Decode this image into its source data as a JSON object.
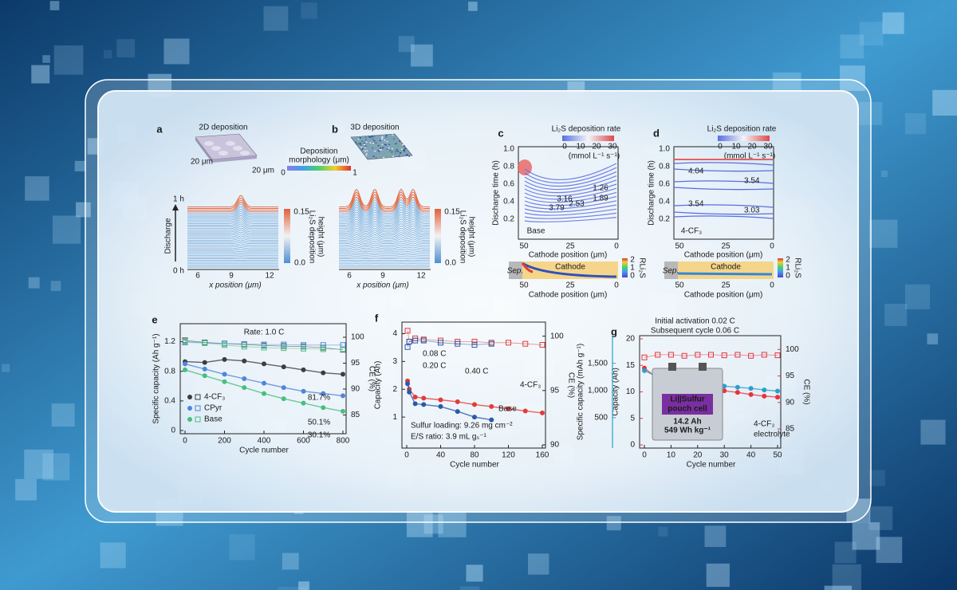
{
  "panels": {
    "a": {
      "label": "a",
      "title": "2D deposition",
      "dims": [
        "20 μm",
        "20 μm"
      ],
      "morph_title": [
        "Deposition",
        "morphology (μm)"
      ],
      "morph_ticks": [
        0,
        1
      ],
      "time_top": "1 h",
      "time_bottom": "0 h",
      "time_label": "Discharge",
      "xticks": [
        6,
        9,
        12
      ],
      "xlabel": "x position (μm)",
      "height_ticks": [
        "0.15",
        "0.0"
      ],
      "height_label": [
        "Li₂S deposition",
        "height (μm)"
      ]
    },
    "b": {
      "label": "b",
      "title": "3D deposition",
      "xticks": [
        6,
        9,
        12
      ],
      "xlabel": "x position (μm)",
      "height_ticks": [
        "0.15",
        "0.0"
      ],
      "height_label": [
        "Li₂S deposition",
        "height (μm)"
      ]
    },
    "c": {
      "label": "c",
      "rate_title": "Li₂S deposition rate",
      "rate_ticks": [
        0,
        10,
        20,
        30
      ],
      "rate_unit": "(mmol L⁻¹ s⁻¹)",
      "yticks": [
        "0.2",
        "0.4",
        "0.6",
        "0.8",
        "1.0"
      ],
      "ylabel": "Discharge time (h)",
      "xticks": [
        50,
        25,
        0
      ],
      "xlabel": "Cathode position (μm)",
      "contour_labels": [
        "1.26",
        "1.89",
        "2.53",
        "3.16",
        "3.79"
      ],
      "tag": "Base",
      "sep": "Sep.",
      "cathode": "Cathode",
      "r_ticks": [
        2,
        1,
        0
      ],
      "r_label": "RLi₂S",
      "strip_xticks": [
        50,
        25,
        0
      ],
      "strip_xlabel": "Cathode position (μm)"
    },
    "d": {
      "label": "d",
      "rate_title": "Li₂S deposition rate",
      "rate_ticks": [
        0,
        10,
        20,
        30
      ],
      "rate_unit": "(mmol L⁻¹ s⁻¹)",
      "yticks": [
        "0.2",
        "0.4",
        "0.6",
        "0.8",
        "1.0"
      ],
      "ylabel": "Discharge time (h)",
      "xticks": [
        50,
        25,
        0
      ],
      "xlabel": "Cathode position (μm)",
      "contour_labels": [
        "4.04",
        "3.54",
        "3.54",
        "3.03"
      ],
      "tag": "4-CF₃",
      "sep": "Sep.",
      "cathode": "Cathode",
      "r_ticks": [
        2,
        1,
        0
      ],
      "r_label": "RLi₂S",
      "strip_xticks": [
        50,
        25,
        0
      ],
      "strip_xlabel": "Cathode position (μm)"
    }
  },
  "chart_data": [
    {
      "type": "line",
      "label": "e",
      "note": "Rate: 1.0 C",
      "x": [
        0,
        100,
        200,
        300,
        400,
        500,
        600,
        700,
        800
      ],
      "series": [
        {
          "name": "4-CF₃",
          "color": "#3d3d3d",
          "values": [
            0.93,
            0.92,
            0.96,
            0.94,
            0.9,
            0.86,
            0.82,
            0.78,
            0.76
          ]
        },
        {
          "name": "CPyr",
          "color": "#4f86d9",
          "values": [
            0.9,
            0.83,
            0.76,
            0.7,
            0.64,
            0.58,
            0.53,
            0.5,
            0.47
          ]
        },
        {
          "name": "Base",
          "color": "#48bf80",
          "values": [
            0.82,
            0.74,
            0.66,
            0.58,
            0.5,
            0.43,
            0.37,
            0.31,
            0.26
          ]
        }
      ],
      "ce_series": [
        {
          "color": "#3d3d3d",
          "axis": "y2",
          "values": [
            99.4,
            99.0,
            98.8,
            98.6,
            98.4,
            98.3,
            98.2,
            98.0,
            97.6
          ]
        },
        {
          "color": "#4f86d9",
          "axis": "y2",
          "values": [
            99.0,
            98.9,
            98.8,
            98.7,
            98.6,
            98.6,
            98.5,
            98.5,
            98.5
          ]
        },
        {
          "color": "#48bf80",
          "axis": "y2",
          "values": [
            99.2,
            98.9,
            98.5,
            98.2,
            98.0,
            97.9,
            97.8,
            97.7,
            97.7
          ]
        }
      ],
      "annotations": [
        "81.7%",
        "50.1%",
        "30.1%"
      ],
      "xlim": [
        0,
        800
      ],
      "xticks": [
        0,
        200,
        400,
        600,
        800
      ],
      "ylim": [
        0,
        1.4
      ],
      "yticks": [
        0,
        0.4,
        0.8,
        1.2
      ],
      "y2lim": [
        82,
        102
      ],
      "y2ticks": [
        85,
        90,
        95,
        100
      ],
      "xlabel": "Cycle number",
      "ylabel": "Specific capacity (Ah g⁻¹)",
      "y2label": "CE (%)",
      "legend": "lower-left"
    },
    {
      "type": "line",
      "label": "f",
      "x": [
        1,
        3,
        10,
        20,
        40,
        60,
        80,
        100,
        120,
        140,
        160
      ],
      "series": [
        {
          "name": "4-CF₃",
          "color": "#e23b3b",
          "values": [
            2.3,
            2.0,
            1.72,
            1.68,
            1.62,
            1.55,
            1.45,
            1.38,
            1.3,
            1.22,
            1.15
          ]
        },
        {
          "name": "Base",
          "color": "#2a5aa8",
          "values": [
            2.2,
            1.9,
            1.48,
            1.45,
            1.38,
            1.2,
            1.0,
            0.9,
            null,
            null,
            null
          ]
        }
      ],
      "ce_series": [
        {
          "color": "#e23b3b",
          "axis": "y2",
          "values": [
            100.5,
            99.5,
            99.8,
            99.7,
            99.6,
            99.5,
            99.5,
            99.4,
            99.4,
            99.3,
            99.2
          ]
        },
        {
          "color": "#2a5aa8",
          "axis": "y2",
          "values": [
            99.0,
            99.5,
            99.6,
            99.6,
            99.4,
            99.3,
            99.2,
            99.3,
            null,
            null,
            null
          ]
        }
      ],
      "annotations": [
        "0.08 C",
        "0.20 C",
        "0.40 C",
        "Sulfur loading: 9.26 mg cm⁻²",
        "E/S ratio: 3.9 mL gₛ⁻¹"
      ],
      "xlim": [
        0,
        160
      ],
      "xticks": [
        0,
        40,
        80,
        120,
        160
      ],
      "ylim": [
        0,
        4.3
      ],
      "yticks": [
        1,
        2,
        3,
        4
      ],
      "y2lim": [
        90,
        101
      ],
      "y2ticks": [
        90,
        95,
        100
      ],
      "xlabel": "Cycle number",
      "ylabel": "Capacity (Ah)",
      "y2label": "CE (%)",
      "legend": "inline"
    },
    {
      "type": "line",
      "label": "g",
      "title": "Initial activation 0.02 C",
      "subtitle": "Subsequent cycle 0.06 C",
      "x": [
        0,
        5,
        10,
        15,
        20,
        25,
        30,
        35,
        40,
        45,
        50
      ],
      "series": [
        {
          "color": "#e8333a",
          "values": [
            14.5,
            12.5,
            11.6,
            11.2,
            10.8,
            10.5,
            10.2,
            9.9,
            9.5,
            9.2,
            9.0
          ]
        },
        {
          "color": "#2b9fcf",
          "axis": "y3",
          "values": [
            1365,
            1250,
            1200,
            1170,
            1140,
            1110,
            1080,
            1060,
            1040,
            1010,
            990
          ]
        }
      ],
      "ce_series": [
        {
          "color": "#e8333a",
          "axis": "y2",
          "values": [
            98.5,
            99,
            99,
            98.8,
            99,
            99,
            98.9,
            99,
            98.8,
            99,
            98.9
          ]
        }
      ],
      "annotations": [
        "4-CF₃",
        "electrolyte"
      ],
      "inset": {
        "name": [
          "Li||Sulfur",
          "pouch cell"
        ],
        "capacity": "14.2 Ah",
        "energy": "549 Wh kg⁻¹"
      },
      "xlim": [
        0,
        50
      ],
      "xticks": [
        0,
        10,
        20,
        30,
        40,
        50
      ],
      "ylim": [
        0,
        20
      ],
      "yticks": [
        0,
        5,
        10,
        15,
        20
      ],
      "y3lim": [
        0,
        1950
      ],
      "y3ticks": [
        500,
        {
          "value": 1000,
          "label": "1,000"
        },
        {
          "value": 1500,
          "label": "1,500"
        }
      ],
      "y2lim": [
        82,
        102
      ],
      "y2ticks": [
        85,
        90,
        95,
        100
      ],
      "xlabel": "Cycle number",
      "ylabel": "Capacity (Ah)",
      "y3label": "Specific capacity (mAh g⁻¹)",
      "y2label": "CE (%)",
      "color_axes": true
    }
  ]
}
